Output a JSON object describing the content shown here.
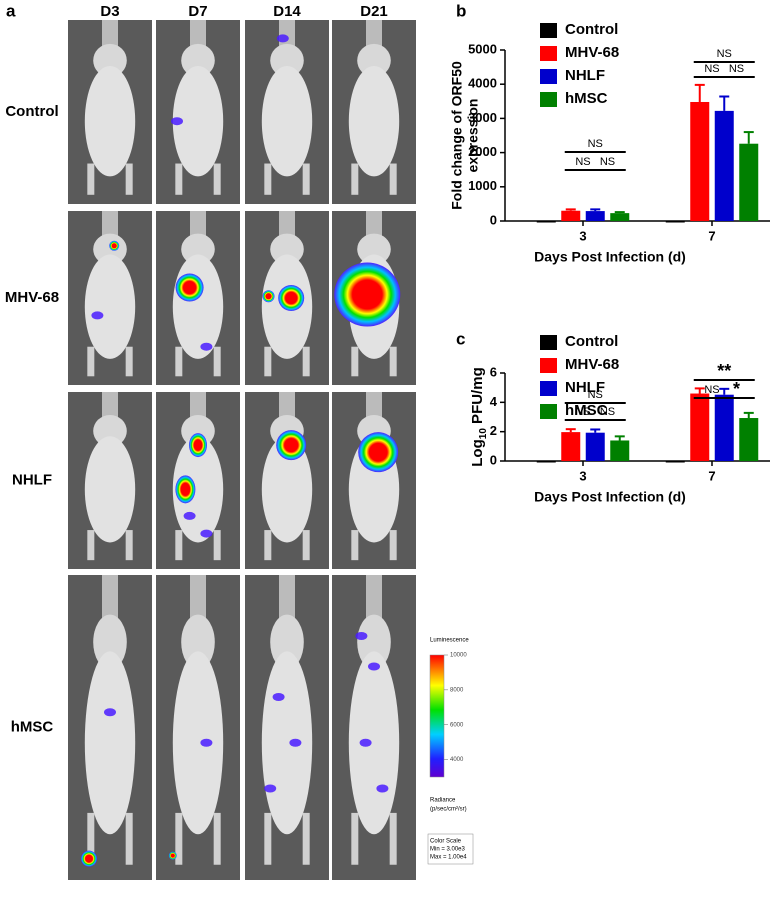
{
  "panel_a": {
    "label": "a",
    "columns": [
      "D3",
      "D7",
      "D14",
      "D21"
    ],
    "rows": [
      "Control",
      "MHV-68",
      "NHLF",
      "hMSC"
    ],
    "colorbar": {
      "title": "Luminescence",
      "lim": [
        3000,
        10000
      ],
      "ticks": [
        10000,
        8000,
        6000,
        4000
      ],
      "unit_lines": [
        "Radiance",
        "(p/sec/cm²/sr)"
      ],
      "scale_lines": [
        "Color Scale",
        "Min = 3.00e3",
        "Max = 1.00e4"
      ]
    }
  },
  "chart_data": [
    {
      "type": "bar",
      "panel_label": "b",
      "ylabel_lines": [
        "Fold change of ORF50",
        "expression"
      ],
      "xlabel": "Days Post Infection (d)",
      "categories": [
        "3",
        "7"
      ],
      "ylim": [
        0,
        5000
      ],
      "yticks": [
        0,
        1000,
        2000,
        3000,
        4000,
        5000
      ],
      "series": [
        {
          "name": "Control",
          "color": "#000000",
          "values": [
            0,
            0
          ]
        },
        {
          "name": "MHV-68",
          "color": "#ff0000",
          "values": [
            300,
            3480
          ],
          "errors": [
            40,
            500
          ]
        },
        {
          "name": "NHLF",
          "color": "#0000cc",
          "values": [
            290,
            3220
          ],
          "errors": [
            50,
            420
          ]
        },
        {
          "name": "hMSC",
          "color": "#008000",
          "values": [
            230,
            2260
          ],
          "errors": [
            30,
            340
          ]
        }
      ],
      "annotations": [
        "NS",
        "NS",
        "NS",
        "NS",
        "NS",
        "NS"
      ]
    },
    {
      "type": "bar",
      "panel_label": "c",
      "ylabel_parts": [
        "Log",
        "10",
        " PFU/mg"
      ],
      "xlabel": "Days Post Infection (d)",
      "categories": [
        "3",
        "7"
      ],
      "ylim": [
        0,
        6
      ],
      "yticks": [
        0,
        2,
        4,
        6
      ],
      "series": [
        {
          "name": "Control",
          "color": "#000000",
          "values": [
            0,
            0
          ]
        },
        {
          "name": "MHV-68",
          "color": "#ff0000",
          "values": [
            1.97,
            4.6
          ],
          "errors": [
            0.2,
            0.35
          ]
        },
        {
          "name": "NHLF",
          "color": "#0000cc",
          "values": [
            1.93,
            4.52
          ],
          "errors": [
            0.22,
            0.4
          ]
        },
        {
          "name": "hMSC",
          "color": "#008000",
          "values": [
            1.4,
            2.93
          ],
          "errors": [
            0.28,
            0.35
          ]
        }
      ],
      "annotations": [
        "NS",
        "NS",
        "NS",
        "**",
        "NS",
        "*"
      ]
    }
  ]
}
